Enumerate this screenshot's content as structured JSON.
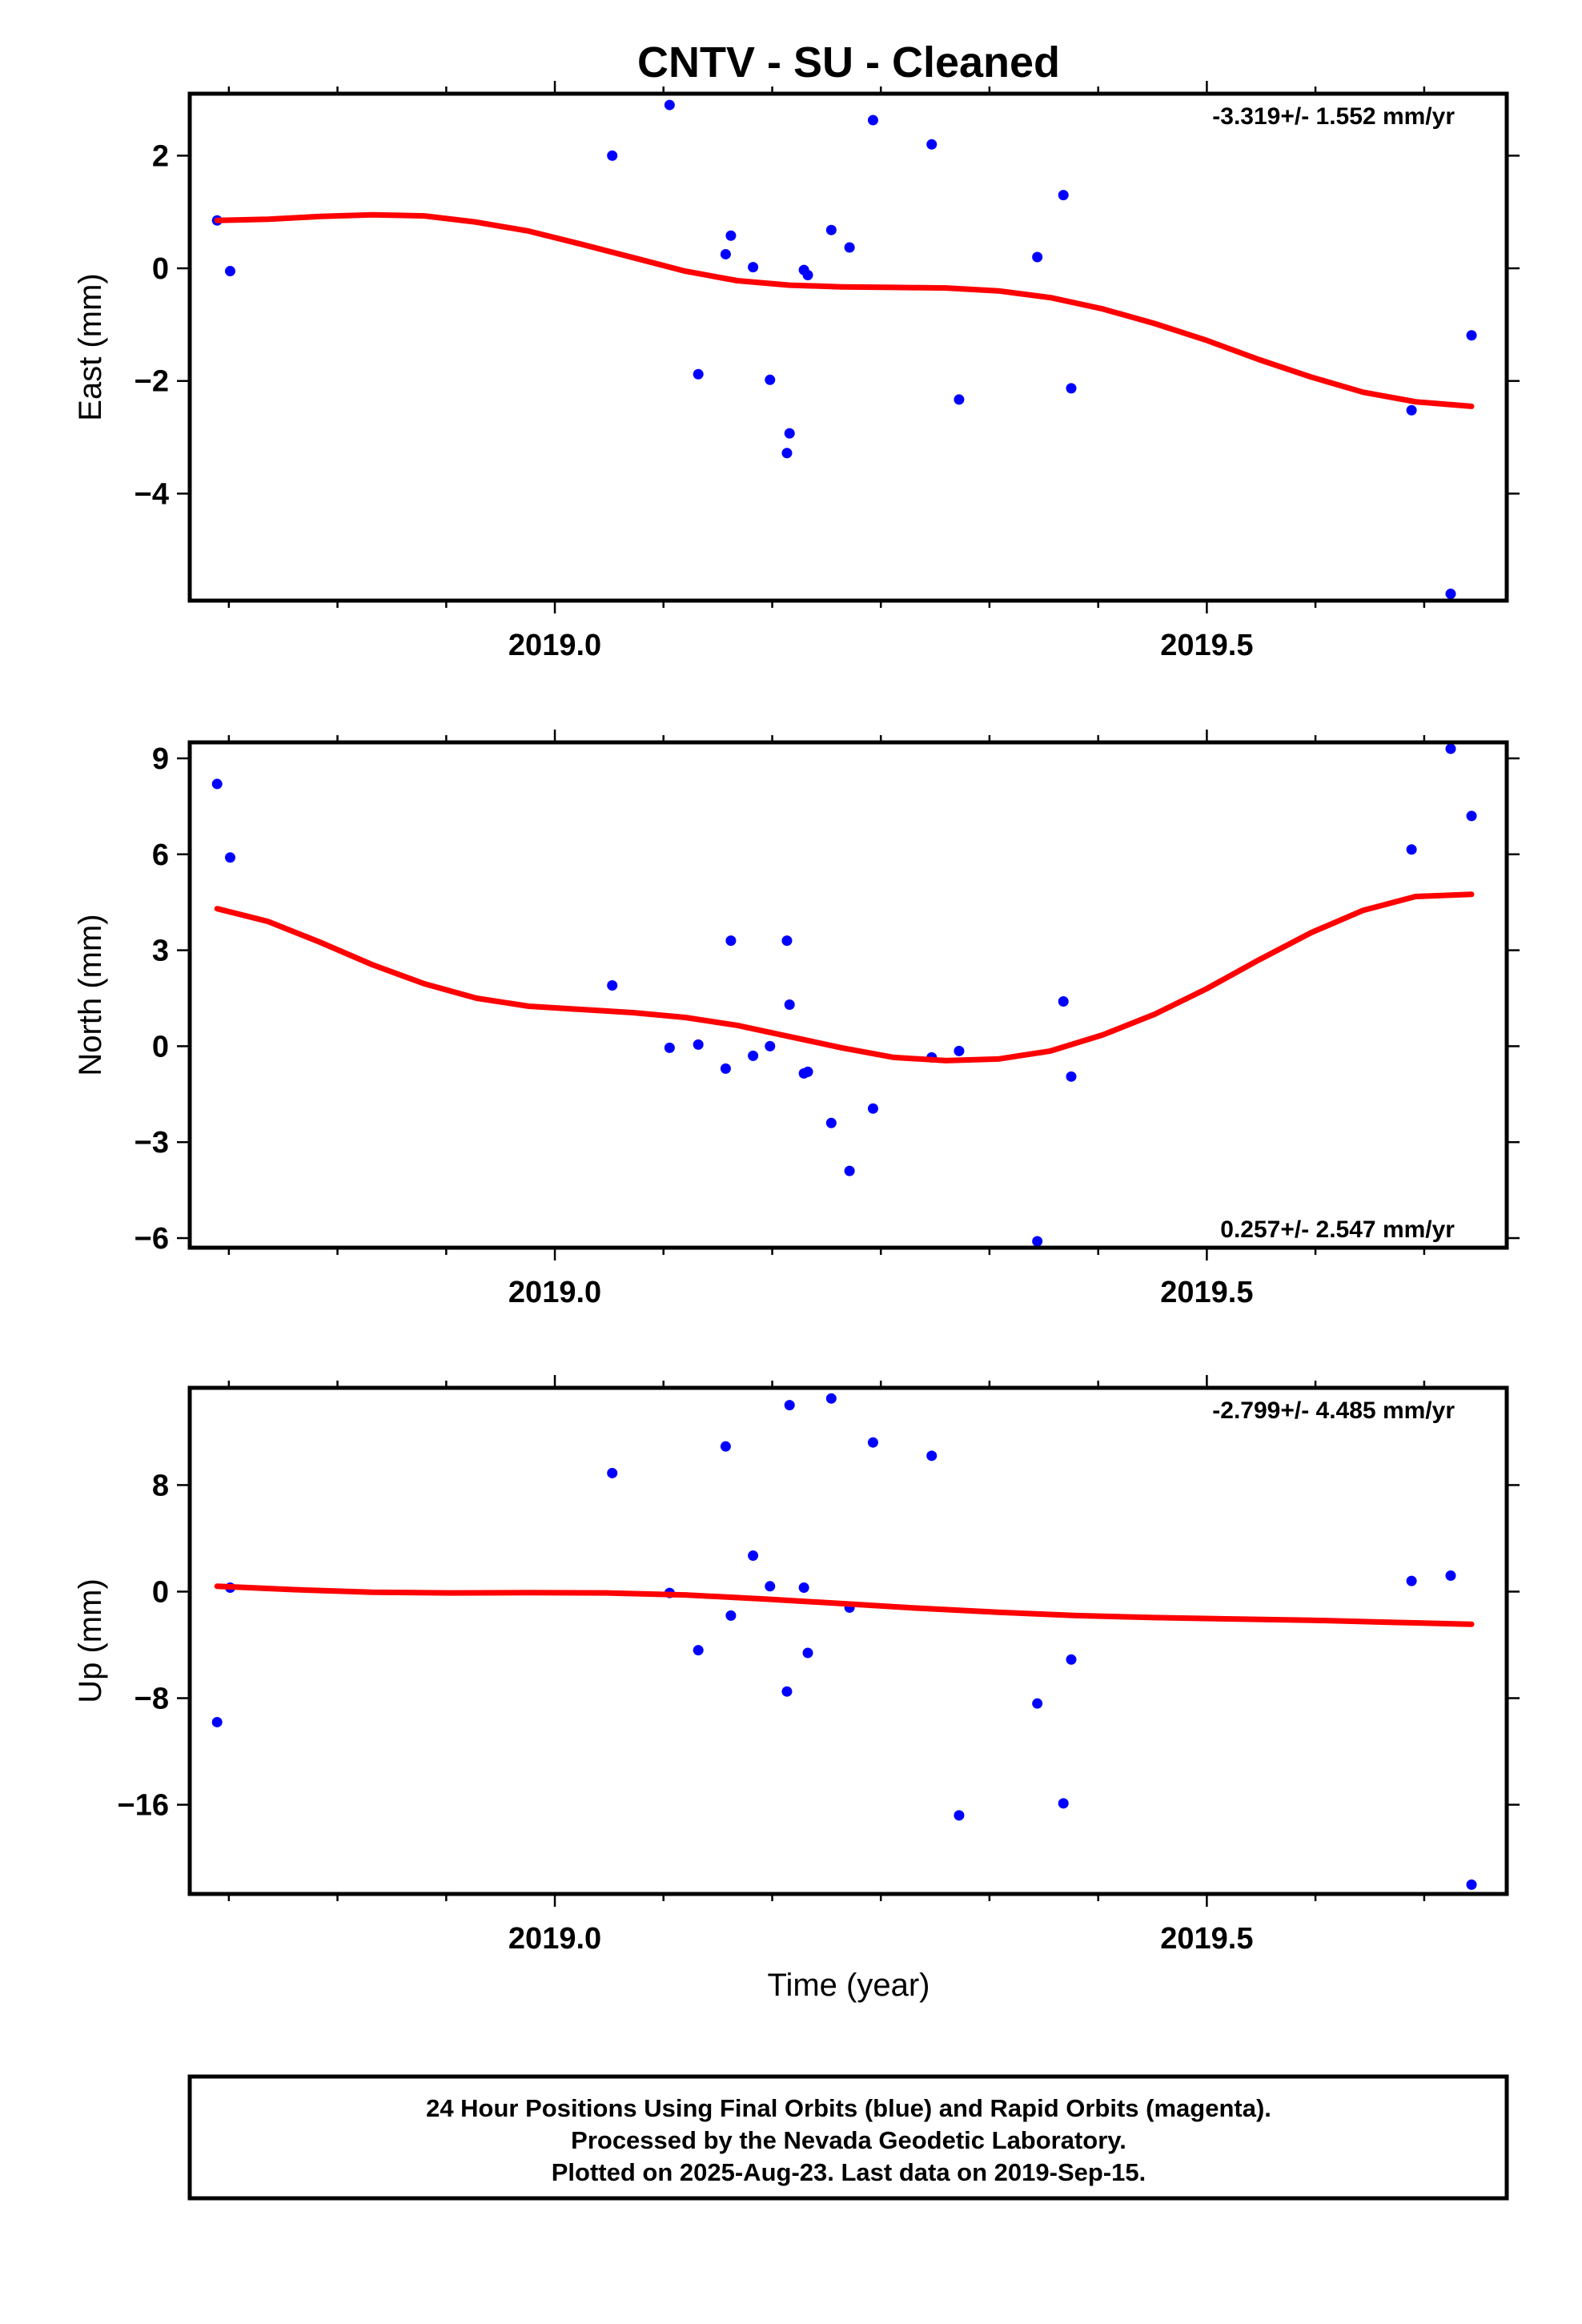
{
  "title": "CNTV  - SU - Cleaned",
  "xlabel": "Time (year)",
  "footer": {
    "lines": [
      "24 Hour Positions Using Final Orbits (blue) and Rapid Orbits (magenta).",
      "Processed by the Nevada Geodetic Laboratory.",
      "Plotted on 2025-Aug-23. Last data on 2019-Sep-15."
    ]
  },
  "colors": {
    "points": "#0000ff",
    "fit": "#ff0000",
    "frame": "#000000"
  },
  "chart_data": [
    {
      "type": "scatter",
      "ylabel": "East (mm)",
      "rate_text": "-3.319+/- 1.552 mm/yr",
      "rate_position": "top-right",
      "xlim": [
        2018.72,
        2019.73
      ],
      "ylim": [
        -5.9,
        3.1
      ],
      "x_ticks": [
        2019.0,
        2019.5
      ],
      "x_tick_labels": [
        "2019.0",
        "2019.5"
      ],
      "x_minor_ticks": [
        2018.75,
        2018.8333,
        2018.9167,
        2019.0833,
        2019.1667,
        2019.25,
        2019.3333,
        2019.4167,
        2019.5833,
        2019.6667
      ],
      "y_ticks": [
        2,
        0,
        -2,
        -4
      ],
      "y_tick_labels": [
        "2",
        "0",
        "−2",
        "−4"
      ],
      "points": {
        "x": [
          2018.741,
          2018.751,
          2019.044,
          2019.088,
          2019.11,
          2019.131,
          2019.135,
          2019.152,
          2019.165,
          2019.178,
          2019.18,
          2019.191,
          2019.194,
          2019.212,
          2019.226,
          2019.244,
          2019.289,
          2019.31,
          2019.37,
          2019.39,
          2019.396,
          2019.657,
          2019.687,
          2019.703
        ],
        "y": [
          0.85,
          -0.05,
          2.0,
          2.9,
          -1.88,
          0.25,
          0.58,
          0.02,
          -1.98,
          -3.28,
          -2.93,
          -0.03,
          -0.12,
          0.68,
          0.37,
          2.63,
          2.2,
          -2.33,
          0.2,
          1.3,
          -2.13,
          -2.52,
          -5.78,
          -1.19
        ]
      },
      "fit": {
        "x": [
          2018.741,
          2018.78,
          2018.82,
          2018.86,
          2018.9,
          2018.94,
          2018.98,
          2019.02,
          2019.06,
          2019.1,
          2019.14,
          2019.18,
          2019.22,
          2019.26,
          2019.3,
          2019.34,
          2019.38,
          2019.42,
          2019.46,
          2019.5,
          2019.54,
          2019.58,
          2019.62,
          2019.66,
          2019.703
        ],
        "y": [
          0.85,
          0.87,
          0.92,
          0.95,
          0.93,
          0.82,
          0.66,
          0.43,
          0.19,
          -0.05,
          -0.22,
          -0.3,
          -0.33,
          -0.34,
          -0.35,
          -0.4,
          -0.52,
          -0.72,
          -0.98,
          -1.28,
          -1.62,
          -1.93,
          -2.2,
          -2.37,
          -2.45
        ]
      }
    },
    {
      "type": "scatter",
      "ylabel": "North (mm)",
      "rate_text": "0.257+/- 2.547 mm/yr",
      "rate_position": "bottom-right",
      "xlim": [
        2018.72,
        2019.73
      ],
      "ylim": [
        -6.3,
        9.5
      ],
      "x_ticks": [
        2019.0,
        2019.5
      ],
      "x_tick_labels": [
        "2019.0",
        "2019.5"
      ],
      "x_minor_ticks": [
        2018.75,
        2018.8333,
        2018.9167,
        2019.0833,
        2019.1667,
        2019.25,
        2019.3333,
        2019.4167,
        2019.5833,
        2019.6667
      ],
      "y_ticks": [
        9,
        6,
        3,
        0,
        -3,
        -6
      ],
      "y_tick_labels": [
        "9",
        "6",
        "3",
        "0",
        "−3",
        "−6"
      ],
      "points": {
        "x": [
          2018.741,
          2018.751,
          2019.044,
          2019.088,
          2019.11,
          2019.131,
          2019.135,
          2019.152,
          2019.165,
          2019.178,
          2019.18,
          2019.191,
          2019.194,
          2019.212,
          2019.226,
          2019.244,
          2019.289,
          2019.31,
          2019.37,
          2019.39,
          2019.396,
          2019.657,
          2019.687,
          2019.703
        ],
        "y": [
          8.2,
          5.9,
          1.9,
          -0.05,
          0.05,
          -0.7,
          3.3,
          -0.3,
          0.0,
          3.3,
          1.3,
          -0.85,
          -0.8,
          -2.4,
          -3.9,
          -1.95,
          -0.35,
          -0.15,
          -6.1,
          1.4,
          -0.95,
          6.15,
          9.3,
          7.2
        ]
      },
      "fit": {
        "x": [
          2018.741,
          2018.78,
          2018.82,
          2018.86,
          2018.9,
          2018.94,
          2018.98,
          2019.02,
          2019.06,
          2019.1,
          2019.14,
          2019.18,
          2019.22,
          2019.26,
          2019.3,
          2019.34,
          2019.38,
          2019.42,
          2019.46,
          2019.5,
          2019.54,
          2019.58,
          2019.62,
          2019.66,
          2019.703
        ],
        "y": [
          4.3,
          3.9,
          3.25,
          2.55,
          1.95,
          1.5,
          1.25,
          1.15,
          1.05,
          0.9,
          0.65,
          0.3,
          -0.05,
          -0.35,
          -0.45,
          -0.4,
          -0.15,
          0.35,
          1.0,
          1.8,
          2.7,
          3.55,
          4.25,
          4.68,
          4.75
        ]
      }
    },
    {
      "type": "scatter",
      "ylabel": "Up (mm)",
      "rate_text": "-2.799+/- 4.485 mm/yr",
      "rate_position": "top-right",
      "xlim": [
        2018.72,
        2019.73
      ],
      "ylim": [
        -22.7,
        15.3
      ],
      "x_ticks": [
        2019.0,
        2019.5
      ],
      "x_tick_labels": [
        "2019.0",
        "2019.5"
      ],
      "x_minor_ticks": [
        2018.75,
        2018.8333,
        2018.9167,
        2019.0833,
        2019.1667,
        2019.25,
        2019.3333,
        2019.4167,
        2019.5833,
        2019.6667
      ],
      "y_ticks": [
        8,
        0,
        -8,
        -16
      ],
      "y_tick_labels": [
        "8",
        "0",
        "−8",
        "−16"
      ],
      "points": {
        "x": [
          2018.741,
          2018.751,
          2019.044,
          2019.088,
          2019.11,
          2019.131,
          2019.135,
          2019.152,
          2019.165,
          2019.178,
          2019.18,
          2019.191,
          2019.194,
          2019.212,
          2019.226,
          2019.244,
          2019.289,
          2019.31,
          2019.37,
          2019.39,
          2019.396,
          2019.657,
          2019.687,
          2019.703
        ],
        "y": [
          -9.8,
          0.3,
          8.9,
          -0.1,
          -4.4,
          10.9,
          -1.8,
          2.7,
          0.4,
          -7.5,
          14.0,
          0.3,
          -4.6,
          14.5,
          -1.2,
          11.2,
          10.2,
          -16.8,
          -8.4,
          -15.9,
          -5.1,
          0.8,
          1.2,
          -22.0
        ]
      },
      "fit": {
        "x": [
          2018.741,
          2018.8,
          2018.86,
          2018.92,
          2018.98,
          2019.04,
          2019.1,
          2019.16,
          2019.22,
          2019.28,
          2019.34,
          2019.4,
          2019.46,
          2019.52,
          2019.58,
          2019.64,
          2019.703
        ],
        "y": [
          0.4,
          0.15,
          -0.05,
          -0.1,
          -0.08,
          -0.1,
          -0.25,
          -0.55,
          -0.9,
          -1.25,
          -1.55,
          -1.8,
          -1.95,
          -2.05,
          -2.15,
          -2.3,
          -2.45
        ]
      }
    }
  ]
}
